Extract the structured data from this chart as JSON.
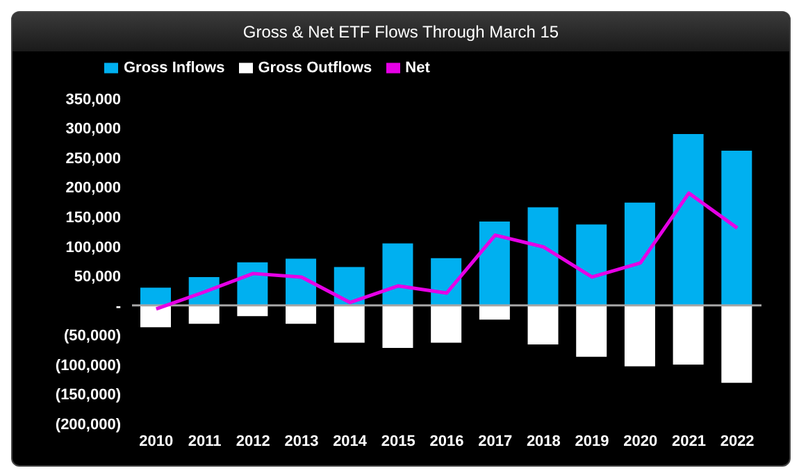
{
  "chart_data": {
    "type": "bar",
    "title": "Gross & Net ETF Flows Through March 15",
    "stacked": true,
    "legend": "top left",
    "grid": false,
    "marker": "none",
    "categories": [
      "2010",
      "2011",
      "2012",
      "2013",
      "2014",
      "2015",
      "2016",
      "2017",
      "2018",
      "2019",
      "2020",
      "2021",
      "2022"
    ],
    "series": [
      {
        "name": "Gross Inflows",
        "color": "#00b0f0",
        "values": [
          30000,
          48000,
          73000,
          79000,
          65000,
          105000,
          80000,
          142000,
          166000,
          137000,
          174000,
          290000,
          262000
        ]
      },
      {
        "name": "Gross Outflows",
        "color": "#ffffff",
        "values": [
          -37000,
          -31000,
          -18000,
          -31000,
          -63000,
          -72000,
          -63000,
          -24000,
          -66000,
          -87000,
          -103000,
          -100000,
          -131000
        ]
      },
      {
        "name": "Net",
        "type": "line",
        "color": "#e600e6",
        "values": [
          -6000,
          23000,
          54000,
          48000,
          5000,
          33000,
          21000,
          119000,
          99000,
          48000,
          72000,
          190000,
          131000
        ]
      }
    ],
    "ylim": [
      -200000,
      350000
    ],
    "yticks": [
      {
        "value": -200000,
        "label": "(200,000)"
      },
      {
        "value": -150000,
        "label": "(150,000)"
      },
      {
        "value": -100000,
        "label": "(100,000)"
      },
      {
        "value": -50000,
        "label": "(50,000)"
      },
      {
        "value": 0,
        "label": "-"
      },
      {
        "value": 50000,
        "label": "50,000"
      },
      {
        "value": 100000,
        "label": "100,000"
      },
      {
        "value": 150000,
        "label": "150,000"
      },
      {
        "value": 200000,
        "label": "200,000"
      },
      {
        "value": 250000,
        "label": "250,000"
      },
      {
        "value": 300000,
        "label": "300,000"
      },
      {
        "value": 350000,
        "label": "350,000"
      }
    ],
    "ref_lines": [
      {
        "axis": "y",
        "value": 0,
        "color": "#a6a6a6"
      }
    ]
  }
}
